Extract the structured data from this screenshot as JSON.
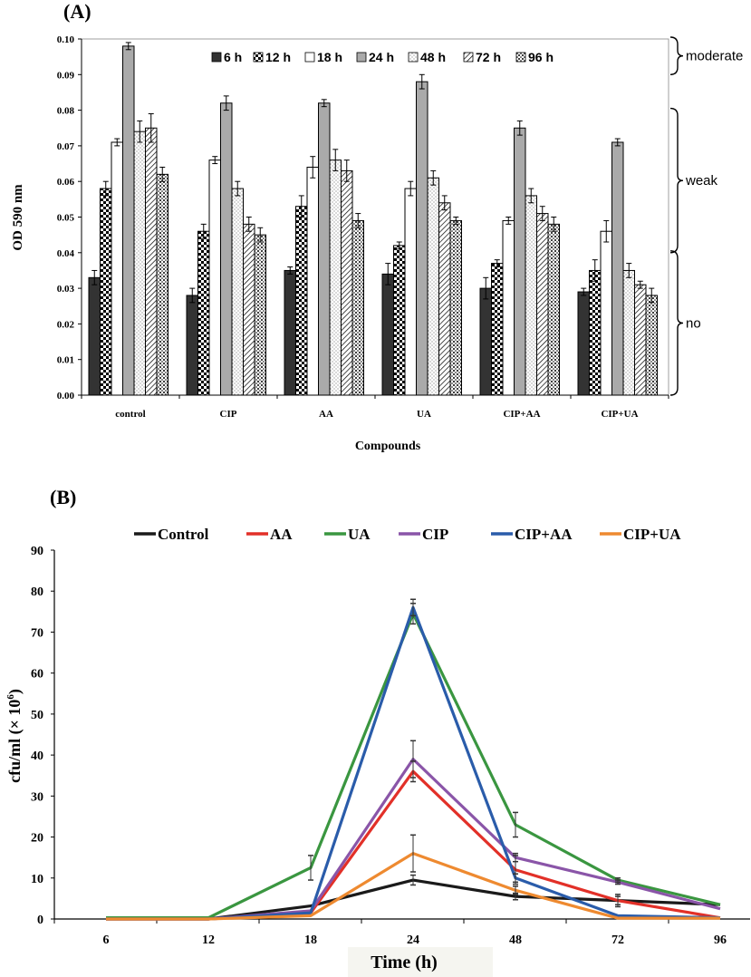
{
  "chart_data": [
    {
      "type": "bar",
      "panel_label": "(A)",
      "categories": [
        "control",
        "CIP",
        "AA",
        "UA",
        "CIP+AA",
        "CIP+UA"
      ],
      "series": [
        {
          "name": "6 h",
          "pattern": "solid-dark",
          "values": [
            0.033,
            0.028,
            0.035,
            0.034,
            0.03,
            0.029
          ],
          "errors": [
            0.002,
            0.002,
            0.001,
            0.003,
            0.003,
            0.001
          ]
        },
        {
          "name": "12 h",
          "pattern": "checker",
          "values": [
            0.058,
            0.046,
            0.053,
            0.042,
            0.037,
            0.035
          ],
          "errors": [
            0.002,
            0.002,
            0.003,
            0.001,
            0.001,
            0.003
          ]
        },
        {
          "name": "18 h",
          "pattern": "white",
          "values": [
            0.071,
            0.066,
            0.064,
            0.058,
            0.049,
            0.046
          ],
          "errors": [
            0.001,
            0.001,
            0.003,
            0.002,
            0.001,
            0.003
          ]
        },
        {
          "name": "24 h",
          "pattern": "gray",
          "values": [
            0.098,
            0.082,
            0.082,
            0.088,
            0.075,
            0.071
          ],
          "errors": [
            0.001,
            0.002,
            0.001,
            0.002,
            0.002,
            0.001
          ]
        },
        {
          "name": "48 h",
          "pattern": "dots-light",
          "values": [
            0.074,
            0.058,
            0.066,
            0.061,
            0.056,
            0.035
          ],
          "errors": [
            0.003,
            0.002,
            0.003,
            0.002,
            0.002,
            0.002
          ]
        },
        {
          "name": "72 h",
          "pattern": "diagonal",
          "values": [
            0.075,
            0.048,
            0.063,
            0.054,
            0.051,
            0.031
          ],
          "errors": [
            0.004,
            0.002,
            0.003,
            0.002,
            0.002,
            0.001
          ]
        },
        {
          "name": "96 h",
          "pattern": "dots-dense",
          "values": [
            0.062,
            0.045,
            0.049,
            0.049,
            0.048,
            0.028
          ],
          "errors": [
            0.002,
            0.002,
            0.002,
            0.001,
            0.002,
            0.002
          ]
        }
      ],
      "ylim": [
        0,
        0.1
      ],
      "yticks": [
        "0.00",
        "0.01",
        "0.02",
        "0.03",
        "0.04",
        "0.05",
        "0.06",
        "0.07",
        "0.08",
        "0.09",
        "0.10"
      ],
      "xlabel": "Compounds",
      "ylabel": "OD 590 nm",
      "legend_position": "top",
      "brackets": [
        {
          "label": "moderate",
          "range": [
            0.09,
            0.1
          ]
        },
        {
          "label": "weak",
          "range": [
            0.04,
            0.08
          ]
        },
        {
          "label": "no",
          "range": [
            0.0,
            0.04
          ]
        }
      ]
    },
    {
      "type": "line",
      "panel_label": "(B)",
      "x": [
        6,
        12,
        18,
        24,
        48,
        72,
        96
      ],
      "xticks": [
        "6",
        "12",
        "18",
        "24",
        "48",
        "72",
        "96"
      ],
      "series": [
        {
          "name": "Control",
          "color": "#1a1a1a",
          "values": [
            0,
            0,
            3.2,
            9.5,
            5.5,
            4.5,
            3.5
          ],
          "errors": [
            0,
            0,
            0,
            1.2,
            0.8,
            1.0,
            0
          ]
        },
        {
          "name": "AA",
          "color": "#e23028",
          "values": [
            0,
            0,
            1.5,
            36,
            12,
            4.5,
            0.3
          ],
          "errors": [
            0,
            0,
            0,
            2.5,
            3.5,
            1.5,
            0
          ]
        },
        {
          "name": "UA",
          "color": "#3a9640",
          "values": [
            0.3,
            0.3,
            12.5,
            74.5,
            23,
            9.5,
            3.5
          ],
          "errors": [
            0,
            0,
            3.0,
            2.5,
            3.0,
            0.5,
            0
          ]
        },
        {
          "name": "CIP",
          "color": "#8a55a8",
          "values": [
            0,
            0,
            2.0,
            39,
            15,
            9.0,
            2.5
          ],
          "errors": [
            0,
            0,
            0,
            4.5,
            1.0,
            0.5,
            0
          ]
        },
        {
          "name": "CIP+AA",
          "color": "#2a5caa",
          "values": [
            0,
            0,
            1.5,
            76,
            10,
            0.8,
            0.3
          ],
          "errors": [
            0,
            0,
            0,
            2.0,
            1.0,
            0,
            0
          ]
        },
        {
          "name": "CIP+UA",
          "color": "#ee8a30",
          "values": [
            0,
            0,
            0.8,
            16,
            7.0,
            0.2,
            0.2
          ],
          "errors": [
            0,
            0,
            0,
            4.5,
            1.0,
            0,
            0
          ]
        }
      ],
      "ylim": [
        0,
        90
      ],
      "yticks": [
        "0",
        "10",
        "20",
        "30",
        "40",
        "50",
        "60",
        "70",
        "80",
        "90"
      ],
      "xlabel": "Time (h)",
      "ylabel_main": "cfu/ml (× 10",
      "ylabel_sup": "6",
      "ylabel_close": ")",
      "legend_position": "top"
    }
  ]
}
